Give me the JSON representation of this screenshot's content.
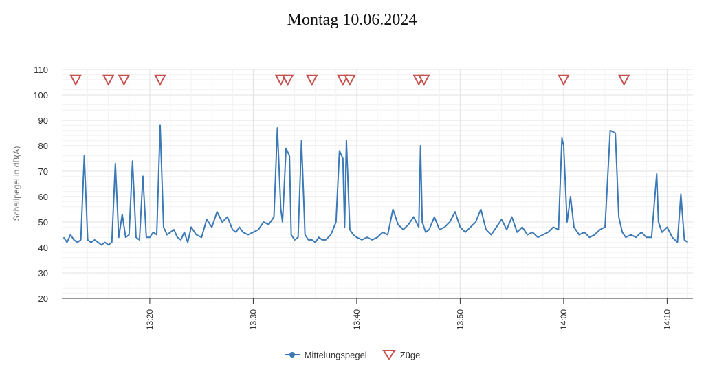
{
  "chart_data": {
    "type": "line",
    "title": "Montag 10.06.2024",
    "ylabel": "Schallpegel in dB(A)",
    "xlabel": "",
    "ylim": [
      20,
      110
    ],
    "xlim": [
      "13:11:30",
      "14:12:30"
    ],
    "y_ticks": [
      "20",
      "30",
      "40",
      "50",
      "60",
      "70",
      "80",
      "90",
      "100",
      "110"
    ],
    "x_ticks": [
      "13:20",
      "13:30",
      "13:40",
      "13:50",
      "14:00",
      "14:10"
    ],
    "grid": true,
    "legend_position": "bottom-center",
    "series": [
      {
        "name": "Mittelungspegel",
        "type": "line",
        "color": "#3a78b6",
        "x": [
          "13:11:40",
          "13:12:00",
          "13:12:20",
          "13:12:40",
          "13:13:00",
          "13:13:20",
          "13:13:40",
          "13:14:00",
          "13:14:20",
          "13:14:40",
          "13:15:00",
          "13:15:20",
          "13:15:40",
          "13:16:00",
          "13:16:20",
          "13:16:40",
          "13:17:00",
          "13:17:20",
          "13:17:40",
          "13:18:00",
          "13:18:20",
          "13:18:40",
          "13:19:00",
          "13:19:20",
          "13:19:40",
          "13:20:00",
          "13:20:20",
          "13:20:40",
          "13:21:00",
          "13:21:20",
          "13:21:40",
          "13:22:00",
          "13:22:20",
          "13:22:40",
          "13:23:00",
          "13:23:20",
          "13:23:40",
          "13:24:00",
          "13:24:30",
          "13:25:00",
          "13:25:30",
          "13:26:00",
          "13:26:30",
          "13:27:00",
          "13:27:30",
          "13:28:00",
          "13:28:20",
          "13:28:40",
          "13:29:00",
          "13:29:30",
          "13:30:00",
          "13:30:30",
          "13:31:00",
          "13:31:30",
          "13:32:00",
          "13:32:20",
          "13:32:40",
          "13:32:50",
          "13:33:10",
          "13:33:30",
          "13:33:40",
          "13:34:00",
          "13:34:20",
          "13:34:40",
          "13:35:00",
          "13:35:20",
          "13:35:40",
          "13:36:00",
          "13:36:20",
          "13:36:40",
          "13:37:00",
          "13:37:30",
          "13:38:00",
          "13:38:20",
          "13:38:40",
          "13:38:50",
          "13:39:00",
          "13:39:20",
          "13:39:40",
          "13:40:00",
          "13:40:30",
          "13:41:00",
          "13:41:30",
          "13:42:00",
          "13:42:30",
          "13:43:00",
          "13:43:30",
          "13:44:00",
          "13:44:30",
          "13:45:00",
          "13:45:30",
          "13:46:00",
          "13:46:10",
          "13:46:20",
          "13:46:40",
          "13:47:00",
          "13:47:30",
          "13:48:00",
          "13:48:30",
          "13:49:00",
          "13:49:30",
          "13:50:00",
          "13:50:30",
          "13:51:00",
          "13:51:30",
          "13:52:00",
          "13:52:30",
          "13:53:00",
          "13:53:30",
          "13:54:00",
          "13:54:30",
          "13:55:00",
          "13:55:30",
          "13:56:00",
          "13:56:30",
          "13:57:00",
          "13:57:30",
          "13:58:00",
          "13:58:30",
          "13:59:00",
          "13:59:30",
          "13:59:50",
          "14:00:00",
          "14:00:20",
          "14:00:40",
          "14:01:00",
          "14:01:30",
          "14:02:00",
          "14:02:30",
          "14:03:00",
          "14:03:30",
          "14:04:00",
          "14:04:30",
          "14:05:00",
          "14:05:20",
          "14:05:40",
          "14:06:00",
          "14:06:30",
          "14:07:00",
          "14:07:30",
          "14:08:00",
          "14:08:30",
          "14:09:00",
          "14:09:10",
          "14:09:30",
          "14:10:00",
          "14:10:30",
          "14:11:00",
          "14:11:20",
          "14:11:40",
          "14:12:00"
        ],
        "values": [
          44,
          42,
          45,
          43,
          42,
          43,
          76,
          43,
          42,
          43,
          42,
          41,
          42,
          41,
          42,
          73,
          44,
          53,
          44,
          45,
          74,
          44,
          43,
          68,
          44,
          44,
          46,
          45,
          88,
          48,
          45,
          46,
          47,
          44,
          43,
          46,
          42,
          48,
          45,
          44,
          51,
          48,
          54,
          50,
          52,
          47,
          46,
          48,
          46,
          45,
          46,
          47,
          50,
          49,
          52,
          87,
          55,
          50,
          79,
          76,
          45,
          43,
          44,
          82,
          45,
          43,
          43,
          42,
          44,
          43,
          43,
          45,
          50,
          78,
          75,
          48,
          82,
          47,
          45,
          44,
          43,
          44,
          43,
          44,
          46,
          45,
          55,
          49,
          47,
          49,
          52,
          48,
          80,
          50,
          46,
          47,
          52,
          47,
          48,
          50,
          54,
          48,
          46,
          48,
          50,
          55,
          47,
          45,
          48,
          51,
          47,
          52,
          46,
          48,
          45,
          46,
          44,
          45,
          46,
          48,
          47,
          83,
          80,
          50,
          60,
          48,
          45,
          46,
          44,
          45,
          47,
          48,
          86,
          85,
          52,
          46,
          44,
          45,
          44,
          46,
          44,
          44,
          69,
          50,
          46,
          48,
          44,
          42,
          61,
          43,
          42
        ]
      },
      {
        "name": "Züge",
        "type": "scatter",
        "marker": "triangle-down",
        "color": "#c8504d",
        "x": [
          "13:12:50",
          "13:16:00",
          "13:17:30",
          "13:21:00",
          "13:32:40",
          "13:33:20",
          "13:35:40",
          "13:38:40",
          "13:39:20",
          "13:46:00",
          "13:46:30",
          "14:00:00",
          "14:05:50"
        ],
        "values": [
          106,
          106,
          106,
          106,
          106,
          106,
          106,
          106,
          106,
          106,
          106,
          106,
          106
        ]
      }
    ]
  }
}
